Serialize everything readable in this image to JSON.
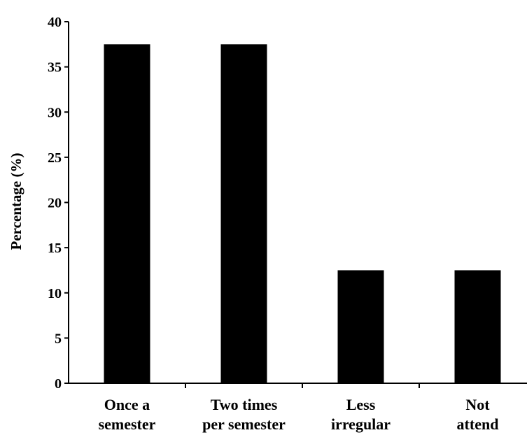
{
  "chart_data": {
    "type": "bar",
    "title": "",
    "xlabel": "",
    "ylabel": "Percentage (%)",
    "ylim": [
      0,
      40
    ],
    "yticks": [
      0,
      5,
      10,
      15,
      20,
      25,
      30,
      35,
      40
    ],
    "grid": false,
    "legend": "none",
    "categories": [
      [
        "Once a",
        "semester"
      ],
      [
        "Two times",
        "per semester"
      ],
      [
        "Less",
        "irregular"
      ],
      [
        "Not",
        "attend"
      ]
    ],
    "values": [
      37.5,
      37.5,
      12.5,
      12.5
    ],
    "bar_color": "#000000",
    "axis_color": "#000000"
  }
}
